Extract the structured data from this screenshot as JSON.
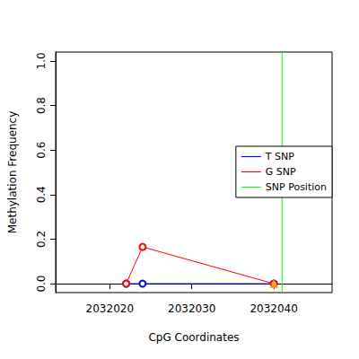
{
  "chart_data": {
    "type": "line",
    "x_label": "CpG Coordinates",
    "y_label": "Methylation Frequency",
    "xlim": [
      2032013.4,
      2032047.1
    ],
    "xticks": [
      2032020,
      2032030,
      2032040
    ],
    "ylim": [
      -0.04,
      1.04
    ],
    "yticks": [
      {
        "value": 0,
        "label": "0.0"
      },
      {
        "value": 0.2,
        "label": "0.2"
      },
      {
        "value": 0.4,
        "label": "0.4"
      },
      {
        "value": 0.6,
        "label": "0.6"
      },
      {
        "value": 0.8,
        "label": "0.8"
      },
      {
        "value": 1,
        "label": "1.0"
      }
    ],
    "series": [
      {
        "name": "T SNP",
        "color": "#0000ff",
        "marker": "open_circle",
        "x": [
          2032022,
          2032024,
          2032040
        ],
        "values": [
          0,
          0,
          0
        ]
      },
      {
        "name": "G SNP",
        "color": "#ff0000",
        "marker": "open_circle",
        "x": [
          2032022,
          2032024,
          2032040
        ],
        "values": [
          0,
          0.165,
          0
        ]
      },
      {
        "type": "scatter",
        "color": "#ffa500",
        "marker": "triangle",
        "x": [
          2032040
        ],
        "values": [
          0
        ]
      }
    ],
    "snp_position": {
      "name": "SNP Position",
      "color": "#00ff00",
      "x": 2032041
    },
    "legend": "right"
  }
}
